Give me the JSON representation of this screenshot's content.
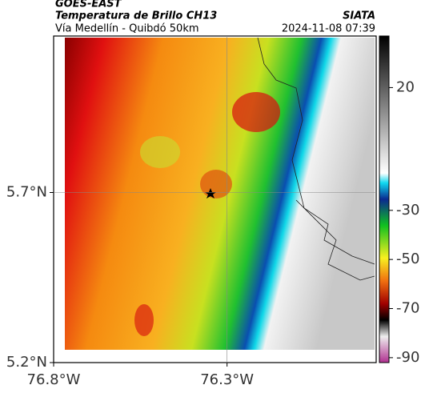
{
  "header": {
    "satellite": "GOES-EAST",
    "title": "Temperatura de Brillo CH13",
    "source": "SIATA",
    "subtitle": "Vía Medellín - Quibdó 50km",
    "datetime": "2024-11-08 07:39"
  },
  "map": {
    "xlim": [
      -76.8,
      -75.87
    ],
    "ylim": [
      5.2,
      6.16
    ],
    "xticks": [
      {
        "value": -76.8,
        "label": "76.8°W"
      },
      {
        "value": -76.3,
        "label": "76.3°W"
      }
    ],
    "yticks": [
      {
        "value": 5.2,
        "label": "5.2°N"
      },
      {
        "value": 5.7,
        "label": "5.7°N"
      }
    ]
  },
  "colorbar": {
    "clim": [
      -92,
      41
    ],
    "ticks": [
      20,
      -30,
      -50,
      -70,
      -90
    ]
  }
}
